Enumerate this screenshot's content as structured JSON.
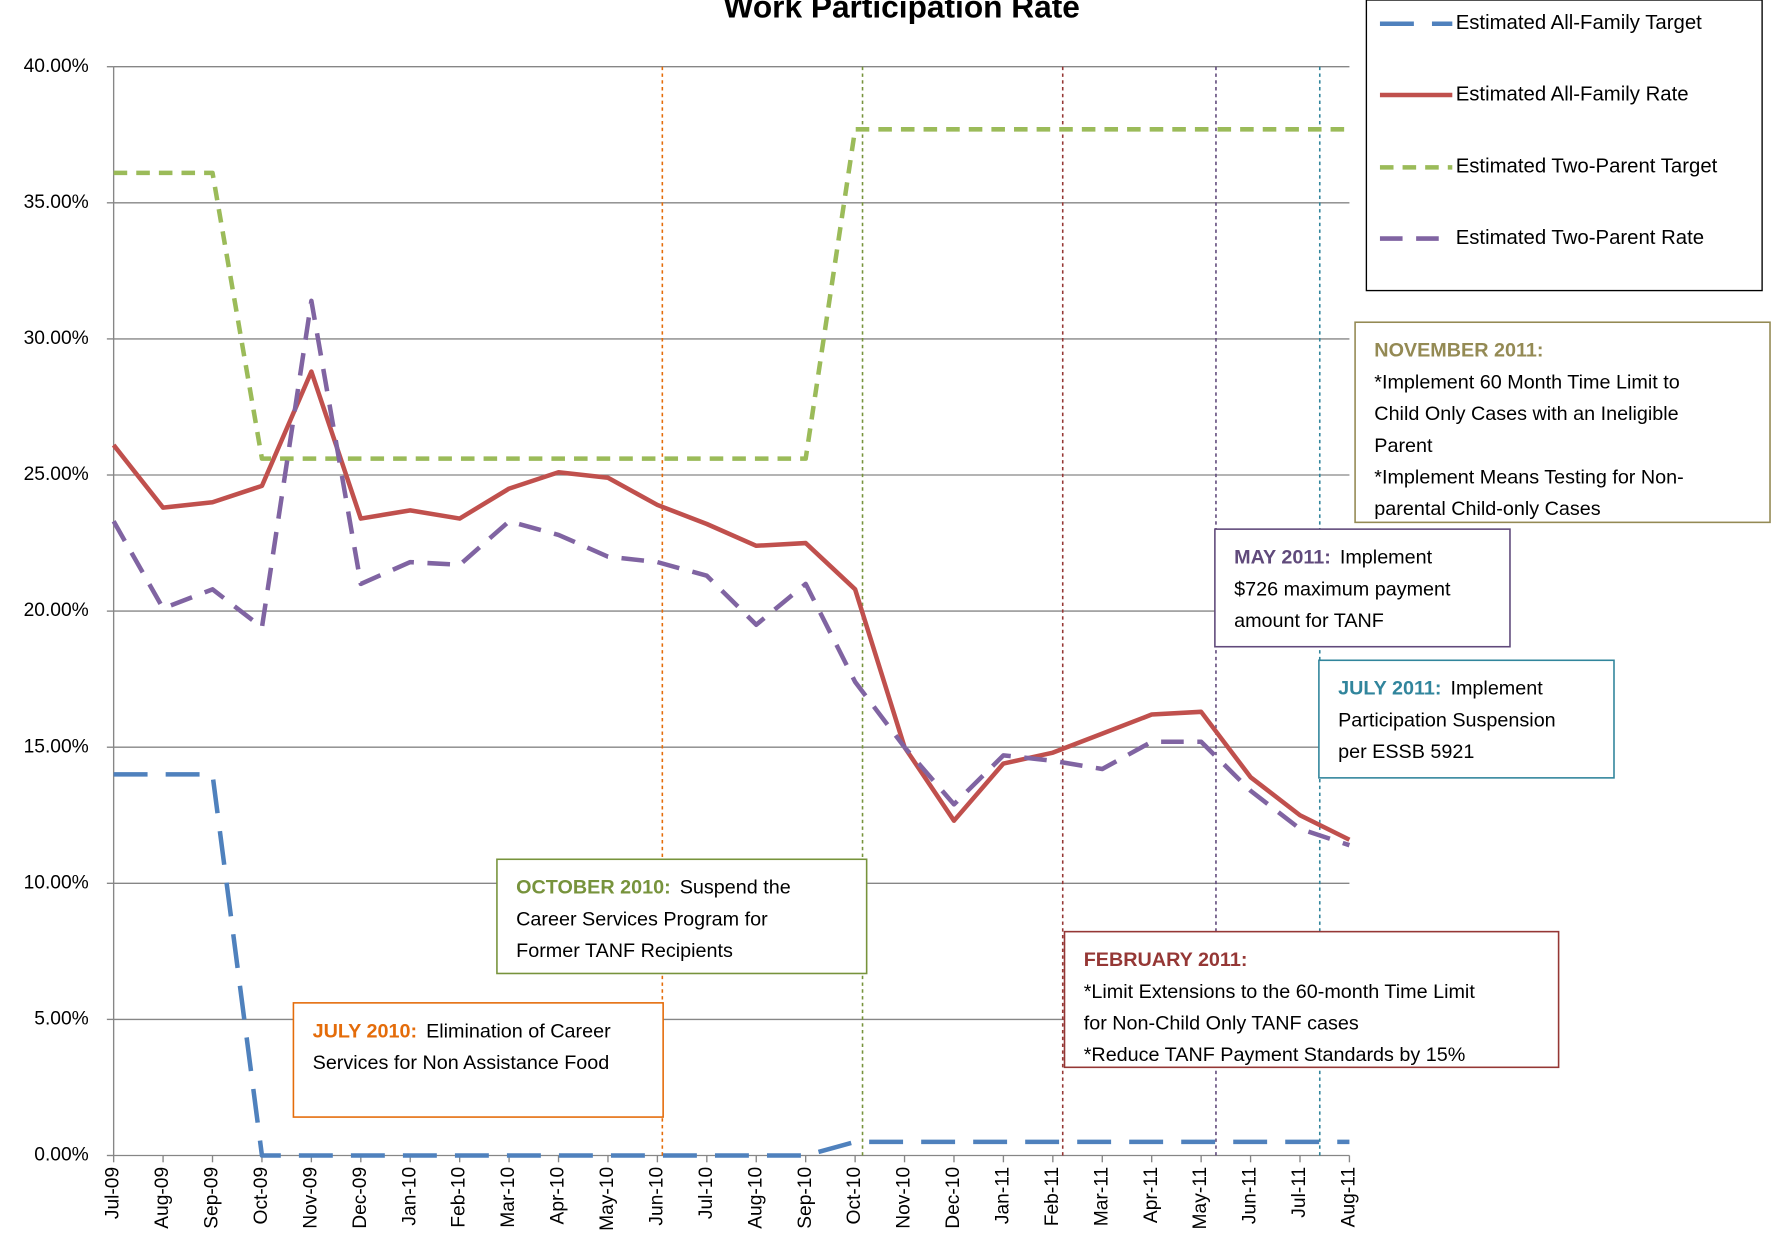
{
  "chart_data": {
    "type": "line",
    "title": "Work Participation Rate",
    "categories": [
      "Jul-09",
      "Aug-09",
      "Sep-09",
      "Oct-09",
      "Nov-09",
      "Dec-09",
      "Jan-10",
      "Feb-10",
      "Mar-10",
      "Apr-10",
      "May-10",
      "Jun-10",
      "Jul-10",
      "Aug-10",
      "Sep-10",
      "Oct-10",
      "Nov-10",
      "Dec-10",
      "Jan-11",
      "Feb-11",
      "Mar-11",
      "Apr-11",
      "May-11",
      "Jun-11",
      "Jul-11",
      "Aug-11"
    ],
    "series": [
      {
        "name": "Estimated All-Family Target",
        "color": "#4f81bd",
        "dash": "30,16",
        "values": [
          14,
          14,
          14,
          0,
          0,
          0,
          0,
          0,
          0,
          0,
          0,
          0,
          0,
          0,
          0,
          0.5,
          0.5,
          0.5,
          0.5,
          0.5,
          0.5,
          0.5,
          0.5,
          0.5,
          0.5,
          0.5
        ]
      },
      {
        "name": "Estimated All-Family Rate",
        "color": "#c0504d",
        "dash": "none",
        "values": [
          26.1,
          23.8,
          24.0,
          24.6,
          28.8,
          23.4,
          23.7,
          23.4,
          24.5,
          25.1,
          24.9,
          23.9,
          23.2,
          22.4,
          22.5,
          20.8,
          15.0,
          12.3,
          14.4,
          14.8,
          15.5,
          16.2,
          16.3,
          13.9,
          12.5,
          11.6
        ]
      },
      {
        "name": "Estimated Two-Parent Target",
        "color": "#9bbb59",
        "dash": "12,8",
        "values": [
          36.1,
          36.1,
          36.1,
          25.6,
          25.6,
          25.6,
          25.6,
          25.6,
          25.6,
          25.6,
          25.6,
          25.6,
          25.6,
          25.6,
          25.6,
          37.7,
          37.7,
          37.7,
          37.7,
          37.7,
          37.7,
          37.7,
          37.7,
          37.7,
          37.7,
          37.7
        ]
      },
      {
        "name": "Estimated Two-Parent Rate",
        "color": "#8064a2",
        "dash": "20,12",
        "values": [
          23.3,
          20.1,
          20.8,
          19.4,
          31.4,
          21.0,
          21.8,
          21.7,
          23.3,
          22.8,
          22.0,
          21.8,
          21.3,
          19.5,
          21.0,
          17.4,
          15.0,
          12.9,
          14.7,
          14.5,
          14.2,
          15.2,
          15.2,
          13.4,
          12.0,
          11.4
        ]
      }
    ],
    "ylim": [
      0,
      40
    ],
    "yticks": [
      {
        "value": 0,
        "label": "0.00%"
      },
      {
        "value": 5,
        "label": "5.00%"
      },
      {
        "value": 10,
        "label": "10.00%"
      },
      {
        "value": 15,
        "label": "15.00%"
      },
      {
        "value": 20,
        "label": "20.00%"
      },
      {
        "value": 25,
        "label": "25.00%"
      },
      {
        "value": 30,
        "label": "30.00%"
      },
      {
        "value": 35,
        "label": "35.00%"
      },
      {
        "value": 40,
        "label": "40.00%"
      }
    ],
    "grid": true,
    "legend": "top-right",
    "annotations": [
      {
        "heading": "JULY 2010:",
        "after_heading": "Elimination  of Career",
        "lines": [
          "Services for Non Assistance Food"
        ],
        "color": "#e46c0a"
      },
      {
        "heading": "OCTOBER 2010:",
        "after_heading": "Suspend the",
        "lines": [
          "Career Services Program for",
          "Former TANF Recipients"
        ],
        "color": "#77933c"
      },
      {
        "heading": "FEBRUARY 2011:",
        "lines": [
          "*Limit Extensions to the 60-month Time Limit",
          "for Non-Child Only TANF cases",
          "*Reduce TANF Payment Standards by 15%"
        ],
        "color": "#953735"
      },
      {
        "heading": "MAY 2011:",
        "after_heading": "Implement",
        "lines": [
          "$726 maximum payment",
          "amount for TANF"
        ],
        "color": "#604a7b"
      },
      {
        "heading": "JULY 2011:",
        "after_heading": "Implement",
        "lines": [
          "Participation Suspension",
          "per ESSB 5921"
        ],
        "color": "#31859c"
      },
      {
        "heading": "NOVEMBER 2011:",
        "lines": [
          "*Implement 60 Month Time Limit to",
          "Child Only Cases with an Ineligible",
          "Parent",
          "*Implement Means Testing for Non-",
          "parental Child-only Cases"
        ],
        "color": "#948a54"
      }
    ]
  }
}
